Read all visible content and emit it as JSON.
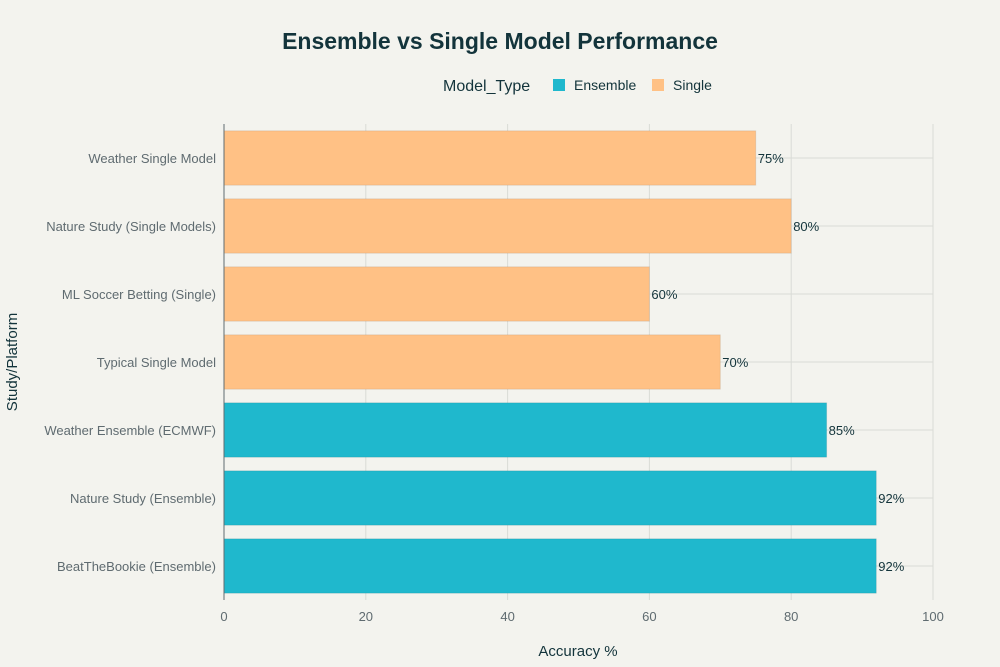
{
  "chart_data": {
    "type": "bar",
    "orientation": "horizontal",
    "title": "Ensemble vs Single Model Performance",
    "xlabel": "Accuracy %",
    "ylabel": "Study/Platform",
    "xlim": [
      0,
      100
    ],
    "x_ticks": [
      0,
      20,
      40,
      60,
      80,
      100
    ],
    "grid": true,
    "legend": {
      "title": "Model_Type",
      "placement": "top",
      "entries": [
        {
          "name": "Ensemble",
          "color": "#1fb8cd"
        },
        {
          "name": "Single",
          "color": "#ffc185"
        }
      ]
    },
    "categories": [
      "Weather Single Model",
      "Nature Study (Single Models)",
      "ML Soccer Betting (Single)",
      "Typical Single Model",
      "Weather Ensemble (ECMWF)",
      "Nature Study (Ensemble)",
      "BeatTheBookie (Ensemble)"
    ],
    "values": [
      75,
      80,
      60,
      70,
      85,
      92,
      92
    ],
    "value_labels": [
      "75%",
      "80%",
      "60%",
      "70%",
      "85%",
      "92%",
      "92%"
    ],
    "model_type": [
      "Single",
      "Single",
      "Single",
      "Single",
      "Ensemble",
      "Ensemble",
      "Ensemble"
    ]
  }
}
